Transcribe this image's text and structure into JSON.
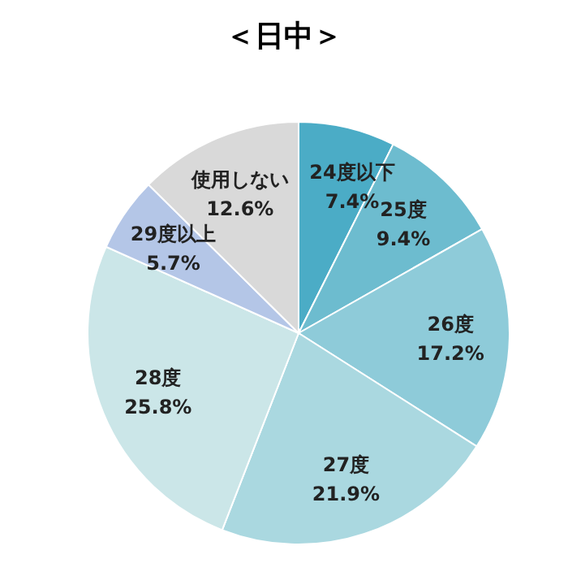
{
  "chart_data": {
    "type": "pie",
    "title": "＜日中＞",
    "categories": [
      "24度以下",
      "25度",
      "26度",
      "27度",
      "28度",
      "29度以上",
      "使用しない"
    ],
    "values": [
      7.4,
      9.4,
      17.2,
      21.9,
      25.8,
      5.7,
      12.6
    ],
    "value_labels": [
      "7.4%",
      "9.4%",
      "17.2%",
      "21.9%",
      "25.8%",
      "5.7%",
      "12.6%"
    ],
    "colors": [
      "#4bacc6",
      "#6dbccf",
      "#8ecbd9",
      "#aad8e0",
      "#cbe6e8",
      "#b4c6e7",
      "#d9d9d9"
    ],
    "legend": false
  }
}
